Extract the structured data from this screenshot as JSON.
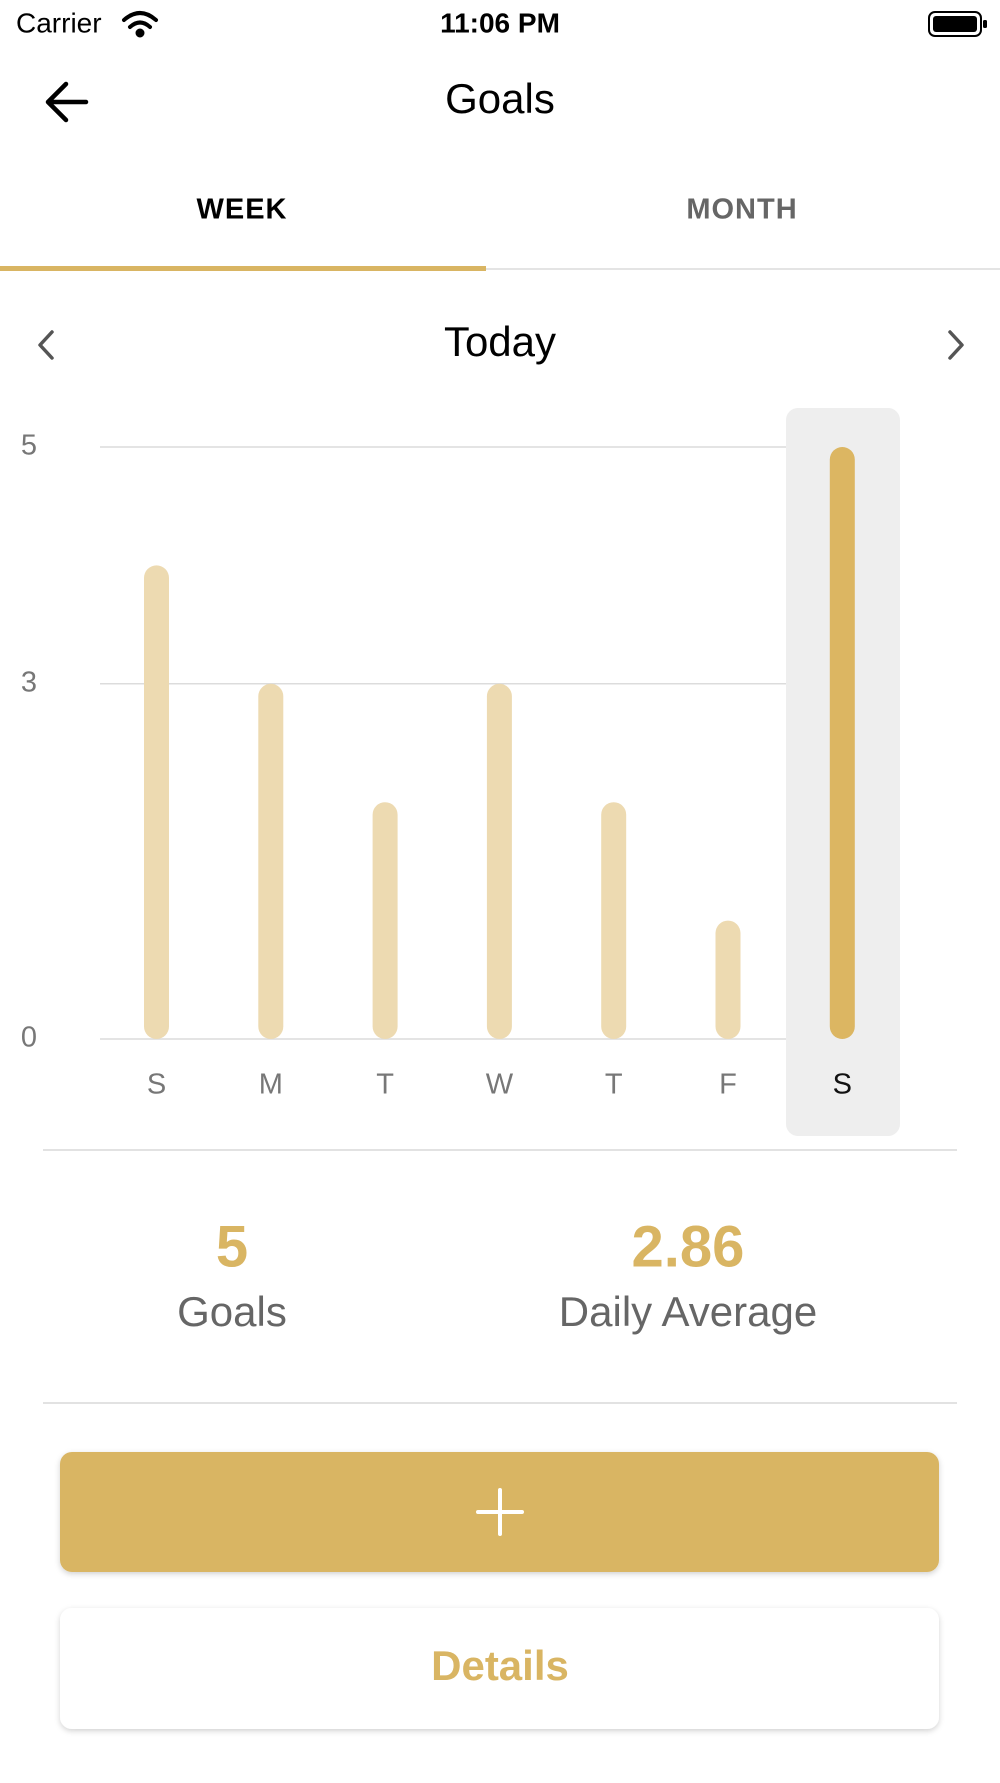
{
  "status_bar": {
    "carrier": "Carrier",
    "time": "11:06 PM"
  },
  "header": {
    "title": "Goals"
  },
  "tabs": [
    "WEEK",
    "MONTH"
  ],
  "nav": {
    "label": "Today"
  },
  "chart_data": {
    "type": "bar",
    "categories": [
      "S",
      "M",
      "T",
      "W",
      "T",
      "F",
      "S"
    ],
    "values": [
      4,
      3,
      2,
      3,
      2,
      1,
      5
    ],
    "colors": [
      "#eddab1",
      "#eddab1",
      "#eddab1",
      "#eddab1",
      "#eddab1",
      "#eddab1",
      "#dcb662"
    ],
    "ylim": [
      0,
      5
    ],
    "yticks": [
      0,
      3,
      5
    ],
    "grid": true
  },
  "summary": [
    {
      "value": 5,
      "label": "Goals"
    },
    {
      "value": 2.86,
      "label": "Daily Average"
    }
  ],
  "buttons": {
    "details": "Details"
  }
}
